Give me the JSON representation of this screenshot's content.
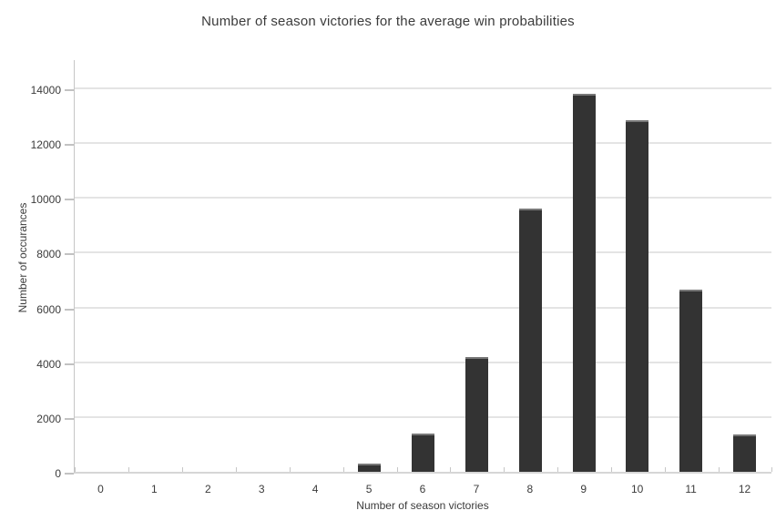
{
  "chart_data": {
    "type": "bar",
    "title": "Number of season victories for the average win probabilities",
    "xlabel": "Number of season victories",
    "ylabel": "Number of occurances",
    "categories": [
      "0",
      "1",
      "2",
      "3",
      "4",
      "5",
      "6",
      "7",
      "8",
      "9",
      "10",
      "11",
      "12"
    ],
    "values": [
      0,
      0,
      0,
      0,
      0,
      300,
      1400,
      4200,
      9600,
      13800,
      12850,
      6650,
      1380
    ],
    "yticks": [
      0,
      2000,
      4000,
      6000,
      8000,
      10000,
      12000,
      14000
    ],
    "ylim": [
      0,
      15100
    ],
    "grid": "horizontal",
    "legend": "none",
    "colors": {
      "bar_fill": "#333333",
      "bar_cap": "#787878",
      "gridline": "#e4e4e4",
      "axis_line": "#c6c6c6",
      "baseline": "#d6d6d6",
      "text": "#3b3b3b",
      "background": "#ffffff"
    }
  }
}
